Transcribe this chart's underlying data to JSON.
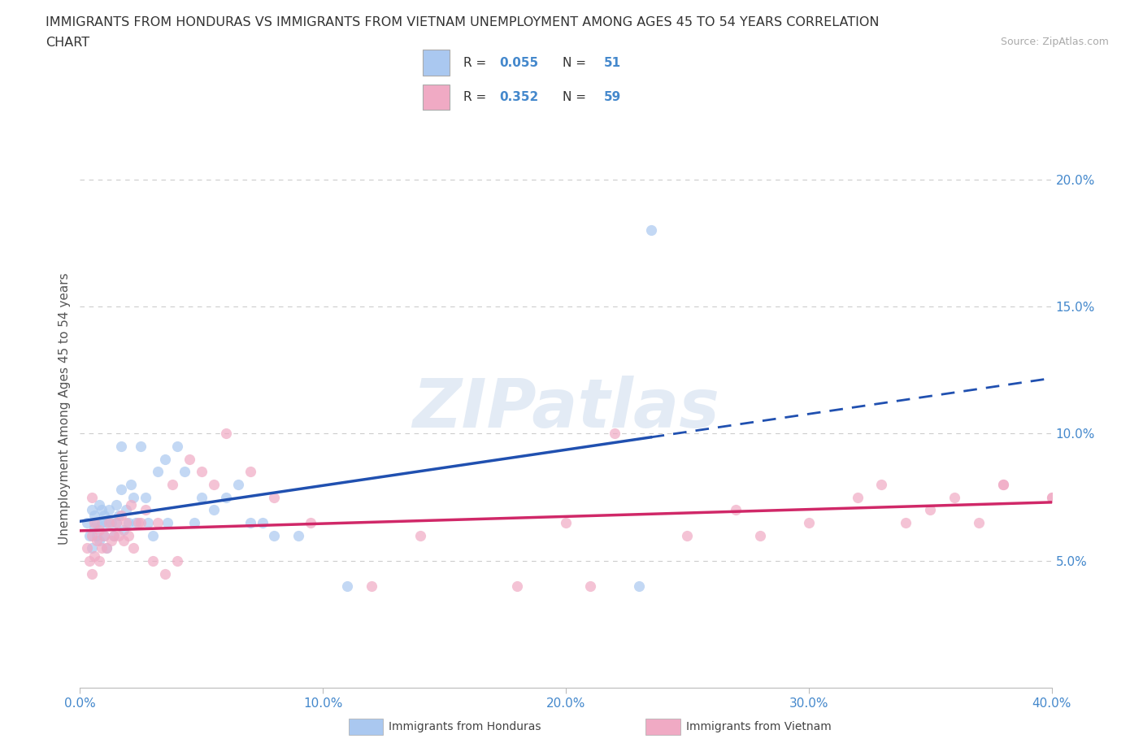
{
  "title_line1": "IMMIGRANTS FROM HONDURAS VS IMMIGRANTS FROM VIETNAM UNEMPLOYMENT AMONG AGES 45 TO 54 YEARS CORRELATION",
  "title_line2": "CHART",
  "source_text": "Source: ZipAtlas.com",
  "ylabel": "Unemployment Among Ages 45 to 54 years",
  "xlim": [
    0.0,
    0.4
  ],
  "ylim": [
    0.0,
    0.22
  ],
  "xtick_vals": [
    0.0,
    0.1,
    0.2,
    0.3,
    0.4
  ],
  "xtick_labels": [
    "0.0%",
    "10.0%",
    "20.0%",
    "30.0%",
    "40.0%"
  ],
  "ytick_vals": [
    0.05,
    0.1,
    0.15,
    0.2
  ],
  "ytick_labels": [
    "5.0%",
    "10.0%",
    "15.0%",
    "20.0%"
  ],
  "grid_color": "#cccccc",
  "background_color": "#ffffff",
  "watermark_text": "ZIPatlas",
  "legend_R1": "0.055",
  "legend_N1": "51",
  "legend_R2": "0.352",
  "legend_N2": "59",
  "blue_fill": "#aac8f0",
  "pink_fill": "#f0aac4",
  "blue_line": "#2050b0",
  "pink_line": "#d02868",
  "axis_color": "#4488cc",
  "title_color": "#333333",
  "source_color": "#aaaaaa",
  "honduras_x": [
    0.003,
    0.004,
    0.005,
    0.005,
    0.006,
    0.006,
    0.007,
    0.007,
    0.008,
    0.008,
    0.009,
    0.009,
    0.01,
    0.01,
    0.011,
    0.011,
    0.012,
    0.013,
    0.014,
    0.015,
    0.015,
    0.016,
    0.017,
    0.018,
    0.019,
    0.02,
    0.021,
    0.022,
    0.023,
    0.025,
    0.027,
    0.028,
    0.03,
    0.032,
    0.035,
    0.036,
    0.04,
    0.043,
    0.047,
    0.05,
    0.055,
    0.06,
    0.065,
    0.07,
    0.075,
    0.08,
    0.09,
    0.11,
    0.23,
    0.235,
    0.017
  ],
  "honduras_y": [
    0.065,
    0.06,
    0.055,
    0.07,
    0.063,
    0.068,
    0.06,
    0.065,
    0.058,
    0.072,
    0.065,
    0.07,
    0.06,
    0.068,
    0.055,
    0.065,
    0.07,
    0.065,
    0.06,
    0.065,
    0.072,
    0.068,
    0.078,
    0.062,
    0.07,
    0.065,
    0.08,
    0.075,
    0.065,
    0.095,
    0.075,
    0.065,
    0.06,
    0.085,
    0.09,
    0.065,
    0.095,
    0.085,
    0.065,
    0.075,
    0.07,
    0.075,
    0.08,
    0.065,
    0.065,
    0.06,
    0.06,
    0.04,
    0.04,
    0.18,
    0.095
  ],
  "vietnam_x": [
    0.003,
    0.004,
    0.005,
    0.005,
    0.006,
    0.006,
    0.007,
    0.008,
    0.008,
    0.009,
    0.01,
    0.011,
    0.012,
    0.013,
    0.014,
    0.015,
    0.016,
    0.017,
    0.018,
    0.019,
    0.02,
    0.021,
    0.022,
    0.024,
    0.025,
    0.027,
    0.03,
    0.032,
    0.035,
    0.038,
    0.04,
    0.045,
    0.05,
    0.055,
    0.06,
    0.07,
    0.08,
    0.095,
    0.12,
    0.14,
    0.18,
    0.2,
    0.22,
    0.25,
    0.27,
    0.3,
    0.32,
    0.34,
    0.35,
    0.36,
    0.37,
    0.38,
    0.4,
    0.21,
    0.28,
    0.33,
    0.38,
    0.4,
    0.005
  ],
  "vietnam_y": [
    0.055,
    0.05,
    0.045,
    0.06,
    0.052,
    0.065,
    0.058,
    0.05,
    0.062,
    0.055,
    0.06,
    0.055,
    0.065,
    0.058,
    0.06,
    0.065,
    0.06,
    0.068,
    0.058,
    0.065,
    0.06,
    0.072,
    0.055,
    0.065,
    0.065,
    0.07,
    0.05,
    0.065,
    0.045,
    0.08,
    0.05,
    0.09,
    0.085,
    0.08,
    0.1,
    0.085,
    0.075,
    0.065,
    0.04,
    0.06,
    0.04,
    0.065,
    0.1,
    0.06,
    0.07,
    0.065,
    0.075,
    0.065,
    0.07,
    0.075,
    0.065,
    0.08,
    0.075,
    0.04,
    0.06,
    0.08,
    0.08,
    0.075,
    0.075
  ]
}
